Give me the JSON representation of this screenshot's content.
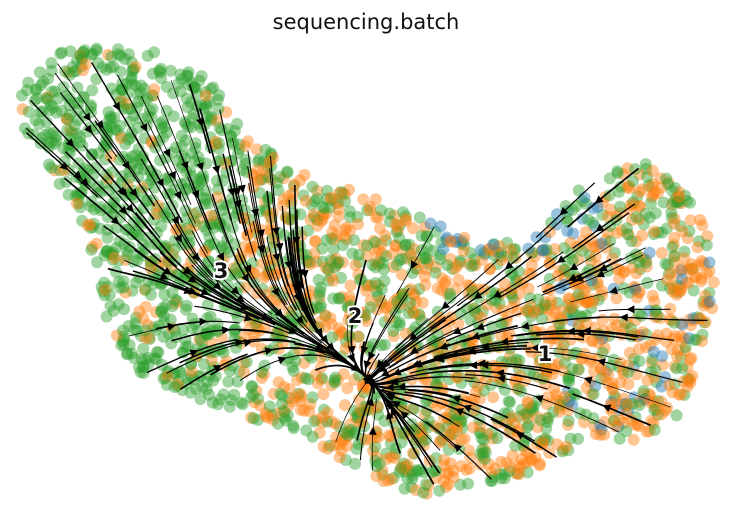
{
  "chart_data": {
    "type": "scatter",
    "subtype": "velocity-stream-embedding",
    "title": "sequencing.batch",
    "xlabel": "",
    "ylabel": "",
    "axes_visible": false,
    "grid": false,
    "legend": "none",
    "series": [
      {
        "color": "#2ca02c"
      },
      {
        "color": "#ff7f0e"
      },
      {
        "color": "#1f77b4"
      }
    ],
    "cluster_labels": [
      "3",
      "2",
      "1"
    ],
    "streamline_color": "#000000"
  }
}
